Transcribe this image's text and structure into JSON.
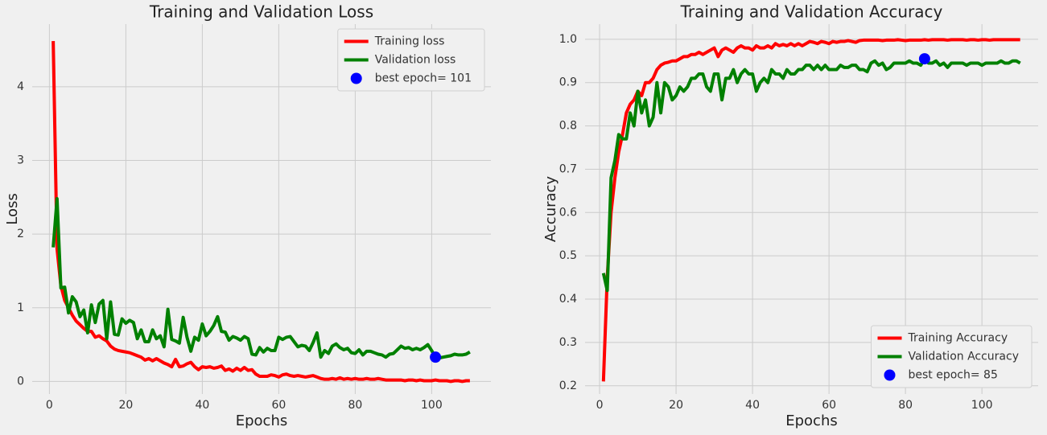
{
  "chart_data": [
    {
      "type": "line",
      "title": "Training and Validation Loss",
      "xlabel": "Epochs",
      "ylabel": "Loss",
      "x": [
        1,
        2,
        3,
        4,
        5,
        6,
        7,
        8,
        9,
        10,
        11,
        12,
        13,
        14,
        15,
        16,
        17,
        18,
        19,
        20,
        21,
        22,
        23,
        24,
        25,
        26,
        27,
        28,
        29,
        30,
        31,
        32,
        33,
        34,
        35,
        36,
        37,
        38,
        39,
        40,
        41,
        42,
        43,
        44,
        45,
        46,
        47,
        48,
        49,
        50,
        51,
        52,
        53,
        54,
        55,
        56,
        57,
        58,
        59,
        60,
        61,
        62,
        63,
        64,
        65,
        66,
        67,
        68,
        69,
        70,
        71,
        72,
        73,
        74,
        75,
        76,
        77,
        78,
        79,
        80,
        81,
        82,
        83,
        84,
        85,
        86,
        87,
        88,
        89,
        90,
        91,
        92,
        93,
        94,
        95,
        96,
        97,
        98,
        99,
        100,
        101,
        102,
        103,
        104,
        105,
        106,
        107,
        108,
        109,
        110
      ],
      "series": [
        {
          "name": "Training loss",
          "color": "#ff0000",
          "values": [
            4.62,
            1.8,
            1.3,
            1.1,
            1.0,
            0.9,
            0.82,
            0.77,
            0.72,
            0.68,
            0.68,
            0.6,
            0.62,
            0.58,
            0.55,
            0.48,
            0.44,
            0.42,
            0.41,
            0.4,
            0.39,
            0.37,
            0.35,
            0.33,
            0.29,
            0.31,
            0.28,
            0.31,
            0.28,
            0.25,
            0.23,
            0.2,
            0.3,
            0.2,
            0.21,
            0.24,
            0.26,
            0.2,
            0.16,
            0.2,
            0.19,
            0.2,
            0.18,
            0.19,
            0.21,
            0.15,
            0.17,
            0.14,
            0.18,
            0.15,
            0.19,
            0.15,
            0.16,
            0.1,
            0.07,
            0.07,
            0.07,
            0.09,
            0.08,
            0.06,
            0.09,
            0.1,
            0.08,
            0.07,
            0.08,
            0.07,
            0.06,
            0.07,
            0.08,
            0.06,
            0.04,
            0.03,
            0.03,
            0.04,
            0.03,
            0.05,
            0.03,
            0.04,
            0.03,
            0.04,
            0.03,
            0.03,
            0.04,
            0.03,
            0.03,
            0.04,
            0.03,
            0.02,
            0.02,
            0.02,
            0.02,
            0.02,
            0.01,
            0.02,
            0.02,
            0.01,
            0.02,
            0.01,
            0.01,
            0.01,
            0.02,
            0.01,
            0.01,
            0.01,
            0.0,
            0.01,
            0.01,
            0.0,
            0.01,
            0.01
          ]
        },
        {
          "name": "Validation loss",
          "color": "#008000",
          "values": [
            1.82,
            2.48,
            1.27,
            1.28,
            0.93,
            1.15,
            1.08,
            0.88,
            0.97,
            0.66,
            1.04,
            0.8,
            1.05,
            1.1,
            0.58,
            1.08,
            0.64,
            0.63,
            0.85,
            0.79,
            0.83,
            0.8,
            0.58,
            0.7,
            0.54,
            0.54,
            0.7,
            0.58,
            0.62,
            0.47,
            0.98,
            0.57,
            0.55,
            0.52,
            0.87,
            0.6,
            0.41,
            0.6,
            0.56,
            0.78,
            0.62,
            0.68,
            0.76,
            0.88,
            0.68,
            0.67,
            0.56,
            0.61,
            0.59,
            0.56,
            0.61,
            0.58,
            0.37,
            0.36,
            0.46,
            0.4,
            0.45,
            0.42,
            0.42,
            0.6,
            0.57,
            0.6,
            0.61,
            0.54,
            0.47,
            0.49,
            0.48,
            0.42,
            0.53,
            0.66,
            0.33,
            0.42,
            0.38,
            0.48,
            0.51,
            0.46,
            0.43,
            0.45,
            0.39,
            0.38,
            0.43,
            0.36,
            0.41,
            0.41,
            0.39,
            0.37,
            0.36,
            0.33,
            0.37,
            0.38,
            0.43,
            0.48,
            0.45,
            0.46,
            0.43,
            0.45,
            0.43,
            0.46,
            0.5,
            0.42,
            0.33,
            0.32,
            0.33,
            0.34,
            0.35,
            0.37,
            0.36,
            0.36,
            0.37,
            0.4
          ]
        }
      ],
      "best": {
        "name": "best epoch= 101",
        "x": 101,
        "y": 0.33,
        "color": "#0000ff"
      },
      "xlim": [
        -4.5,
        115.5
      ],
      "ylim": [
        -0.17,
        4.85
      ],
      "xticks": [
        0,
        20,
        40,
        60,
        80,
        100
      ],
      "yticks": [
        0,
        1,
        2,
        3,
        4
      ],
      "grid": true,
      "legend": "upper right"
    },
    {
      "type": "line",
      "title": "Training and Validation Accuracy",
      "xlabel": "Epochs",
      "ylabel": "Accuracy",
      "x": [
        1,
        2,
        3,
        4,
        5,
        6,
        7,
        8,
        9,
        10,
        11,
        12,
        13,
        14,
        15,
        16,
        17,
        18,
        19,
        20,
        21,
        22,
        23,
        24,
        25,
        26,
        27,
        28,
        29,
        30,
        31,
        32,
        33,
        34,
        35,
        36,
        37,
        38,
        39,
        40,
        41,
        42,
        43,
        44,
        45,
        46,
        47,
        48,
        49,
        50,
        51,
        52,
        53,
        54,
        55,
        56,
        57,
        58,
        59,
        60,
        61,
        62,
        63,
        64,
        65,
        66,
        67,
        68,
        69,
        70,
        71,
        72,
        73,
        74,
        75,
        76,
        77,
        78,
        79,
        80,
        81,
        82,
        83,
        84,
        85,
        86,
        87,
        88,
        89,
        90,
        91,
        92,
        93,
        94,
        95,
        96,
        97,
        98,
        99,
        100,
        101,
        102,
        103,
        104,
        105,
        106,
        107,
        108,
        109,
        110
      ],
      "series": [
        {
          "name": "Training Accuracy",
          "color": "#ff0000",
          "values": [
            0.21,
            0.45,
            0.6,
            0.68,
            0.74,
            0.78,
            0.83,
            0.85,
            0.86,
            0.88,
            0.87,
            0.9,
            0.9,
            0.91,
            0.93,
            0.94,
            0.945,
            0.947,
            0.95,
            0.95,
            0.955,
            0.96,
            0.96,
            0.965,
            0.965,
            0.97,
            0.965,
            0.97,
            0.975,
            0.98,
            0.96,
            0.975,
            0.98,
            0.975,
            0.97,
            0.98,
            0.985,
            0.98,
            0.98,
            0.975,
            0.985,
            0.98,
            0.98,
            0.985,
            0.98,
            0.99,
            0.985,
            0.988,
            0.985,
            0.99,
            0.985,
            0.99,
            0.985,
            0.99,
            0.995,
            0.993,
            0.99,
            0.995,
            0.993,
            0.99,
            0.995,
            0.993,
            0.995,
            0.995,
            0.997,
            0.995,
            0.993,
            0.997,
            0.998,
            0.998,
            0.998,
            0.998,
            0.998,
            0.997,
            0.998,
            0.998,
            0.998,
            0.999,
            0.998,
            0.997,
            0.998,
            0.998,
            0.998,
            0.998,
            0.999,
            0.998,
            0.999,
            0.999,
            0.999,
            0.999,
            0.998,
            0.999,
            0.999,
            0.999,
            0.999,
            0.998,
            0.999,
            0.999,
            0.998,
            0.999,
            0.999,
            0.998,
            0.999,
            0.999,
            0.999,
            0.999,
            0.999,
            0.999,
            0.999,
            0.999
          ]
        },
        {
          "name": "Validation Accuracy",
          "color": "#008000",
          "values": [
            0.46,
            0.42,
            0.68,
            0.72,
            0.78,
            0.77,
            0.77,
            0.83,
            0.8,
            0.88,
            0.83,
            0.86,
            0.8,
            0.82,
            0.9,
            0.83,
            0.9,
            0.89,
            0.86,
            0.87,
            0.89,
            0.88,
            0.89,
            0.91,
            0.91,
            0.92,
            0.92,
            0.89,
            0.88,
            0.92,
            0.92,
            0.86,
            0.91,
            0.91,
            0.93,
            0.9,
            0.92,
            0.93,
            0.92,
            0.92,
            0.88,
            0.9,
            0.91,
            0.9,
            0.93,
            0.92,
            0.92,
            0.91,
            0.93,
            0.92,
            0.92,
            0.93,
            0.93,
            0.94,
            0.94,
            0.93,
            0.94,
            0.93,
            0.94,
            0.93,
            0.93,
            0.93,
            0.94,
            0.935,
            0.935,
            0.94,
            0.94,
            0.93,
            0.93,
            0.925,
            0.945,
            0.95,
            0.94,
            0.945,
            0.93,
            0.935,
            0.945,
            0.945,
            0.945,
            0.945,
            0.95,
            0.945,
            0.945,
            0.94,
            0.955,
            0.945,
            0.945,
            0.95,
            0.94,
            0.945,
            0.935,
            0.945,
            0.945,
            0.945,
            0.945,
            0.94,
            0.945,
            0.945,
            0.945,
            0.94,
            0.945,
            0.945,
            0.945,
            0.945,
            0.95,
            0.945,
            0.945,
            0.95,
            0.95,
            0.945
          ]
        }
      ],
      "best": {
        "name": "best epoch= 85",
        "x": 85,
        "y": 0.955,
        "color": "#0000ff"
      },
      "xlim": [
        -3.8,
        114.7
      ],
      "ylim": [
        0.181,
        1.035
      ],
      "xticks": [
        0,
        20,
        40,
        60,
        80,
        100
      ],
      "yticks": [
        0.2,
        0.3,
        0.4,
        0.5,
        0.6,
        0.7,
        0.8,
        0.9,
        {
          "value": 1,
          "label": "1.0"
        }
      ],
      "grid": true,
      "legend": "lower right"
    }
  ]
}
